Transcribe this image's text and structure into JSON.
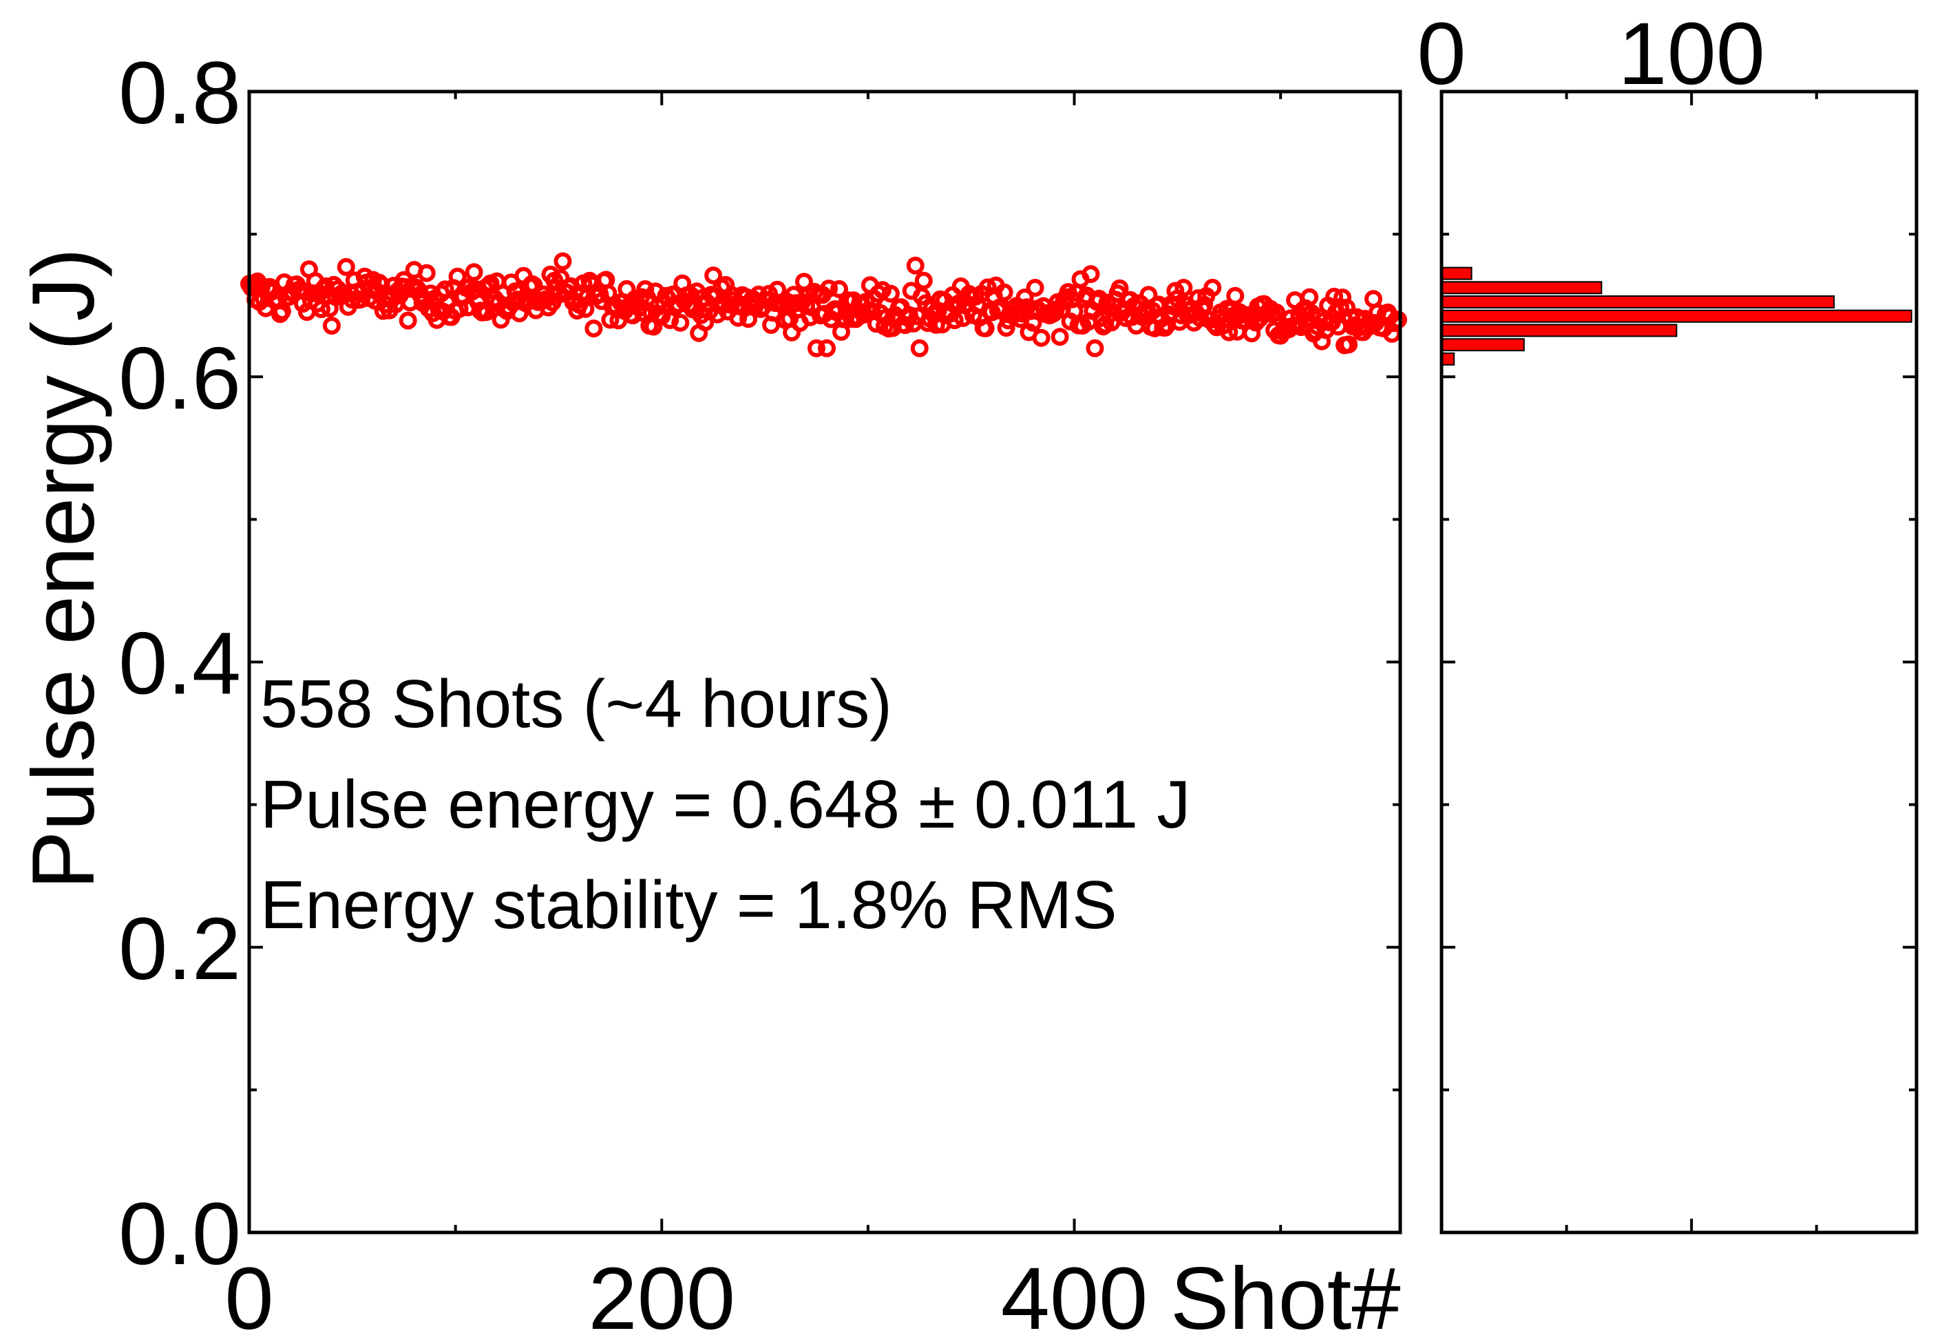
{
  "colors": {
    "series": "#ff0000",
    "axis": "#000000",
    "background": "#ffffff"
  },
  "chart_data": [
    {
      "type": "scatter",
      "xlabel": "Shot#",
      "ylabel": "Pulse energy (J)",
      "xlim": [
        0,
        558
      ],
      "ylim": [
        0.0,
        0.8
      ],
      "x_ticks": [
        0,
        200,
        400
      ],
      "x_tick_labels": [
        "0",
        "200",
        "400"
      ],
      "y_ticks": [
        0.0,
        0.2,
        0.4,
        0.6,
        0.8
      ],
      "y_tick_labels": [
        "0.0",
        "0.2",
        "0.4",
        "0.6",
        "0.8"
      ],
      "grid": false,
      "marker": "open-circle",
      "trend": [
        [
          0,
          0.657
        ],
        [
          60,
          0.657
        ],
        [
          150,
          0.655
        ],
        [
          250,
          0.65
        ],
        [
          350,
          0.647
        ],
        [
          420,
          0.648
        ],
        [
          480,
          0.643
        ],
        [
          558,
          0.636
        ]
      ],
      "noise_sd": 0.008,
      "n_points": 558,
      "outliers": [
        [
          275,
          0.62
        ],
        [
          280,
          0.62
        ],
        [
          325,
          0.62
        ],
        [
          410,
          0.62
        ],
        [
          323,
          0.678
        ],
        [
          152,
          0.681
        ],
        [
          47,
          0.677
        ],
        [
          408,
          0.672
        ]
      ],
      "annotations": [
        "558 Shots (~4 hours)",
        "Pulse energy = 0.648 ± 0.011 J",
        "Energy stability = 1.8% RMS"
      ]
    },
    {
      "type": "bar",
      "orientation": "horizontal",
      "x_tick_labels": [
        "0",
        "100"
      ],
      "x_ticks": [
        0,
        100
      ],
      "xlim": [
        0,
        190
      ],
      "ylim": [
        0.0,
        0.8
      ],
      "grid": false,
      "bins": [
        {
          "center": 0.6125,
          "count": 5
        },
        {
          "center": 0.6225,
          "count": 33
        },
        {
          "center": 0.6325,
          "count": 94
        },
        {
          "center": 0.6425,
          "count": 188
        },
        {
          "center": 0.6525,
          "count": 157
        },
        {
          "center": 0.6625,
          "count": 64
        },
        {
          "center": 0.6725,
          "count": 12
        }
      ],
      "bin_width": 0.01
    }
  ]
}
